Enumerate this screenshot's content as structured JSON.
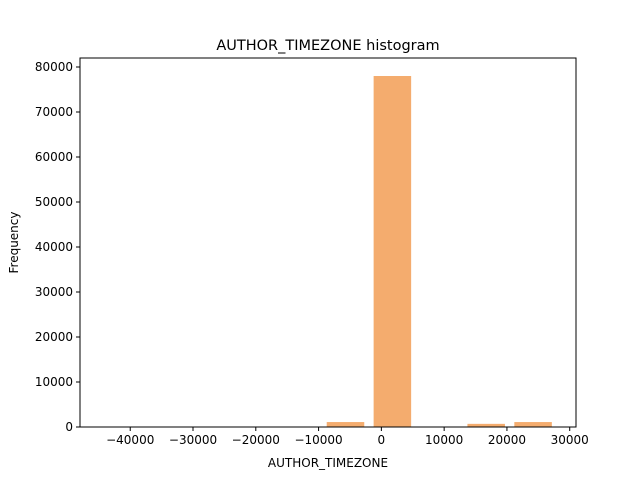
{
  "chart_data": {
    "type": "bar",
    "title": "AUTHOR_TIMEZONE histogram",
    "xlabel": "AUTHOR_TIMEZONE",
    "ylabel": "Frequency",
    "xlim": [
      -48000,
      31000
    ],
    "ylim": [
      0,
      82000
    ],
    "bar_color": "#f4ac6e",
    "grid": false,
    "legend": "none",
    "bins": [
      {
        "x0": -46800,
        "x1": -39330,
        "count": 0
      },
      {
        "x0": -39330,
        "x1": -31860,
        "count": 0
      },
      {
        "x0": -31860,
        "x1": -24390,
        "count": 0
      },
      {
        "x0": -24390,
        "x1": -16920,
        "count": 0
      },
      {
        "x0": -16920,
        "x1": -9450,
        "count": 0
      },
      {
        "x0": -9450,
        "x1": -1980,
        "count": 1100
      },
      {
        "x0": -1980,
        "x1": 5490,
        "count": 78000
      },
      {
        "x0": 5490,
        "x1": 12960,
        "count": 0
      },
      {
        "x0": 12960,
        "x1": 20430,
        "count": 700
      },
      {
        "x0": 20430,
        "x1": 27900,
        "count": 1100
      }
    ],
    "bar_width_fraction": 0.8,
    "xticks": [
      {
        "value": -40000,
        "label": "−40000"
      },
      {
        "value": -30000,
        "label": "−30000"
      },
      {
        "value": -20000,
        "label": "−20000"
      },
      {
        "value": -10000,
        "label": "−10000"
      },
      {
        "value": 0,
        "label": "0"
      },
      {
        "value": 10000,
        "label": "10000"
      },
      {
        "value": 20000,
        "label": "20000"
      },
      {
        "value": 30000,
        "label": "30000"
      }
    ],
    "yticks": [
      {
        "value": 0,
        "label": "0"
      },
      {
        "value": 10000,
        "label": "10000"
      },
      {
        "value": 20000,
        "label": "20000"
      },
      {
        "value": 30000,
        "label": "30000"
      },
      {
        "value": 40000,
        "label": "40000"
      },
      {
        "value": 50000,
        "label": "50000"
      },
      {
        "value": 60000,
        "label": "60000"
      },
      {
        "value": 70000,
        "label": "70000"
      },
      {
        "value": 80000,
        "label": "80000"
      }
    ]
  }
}
